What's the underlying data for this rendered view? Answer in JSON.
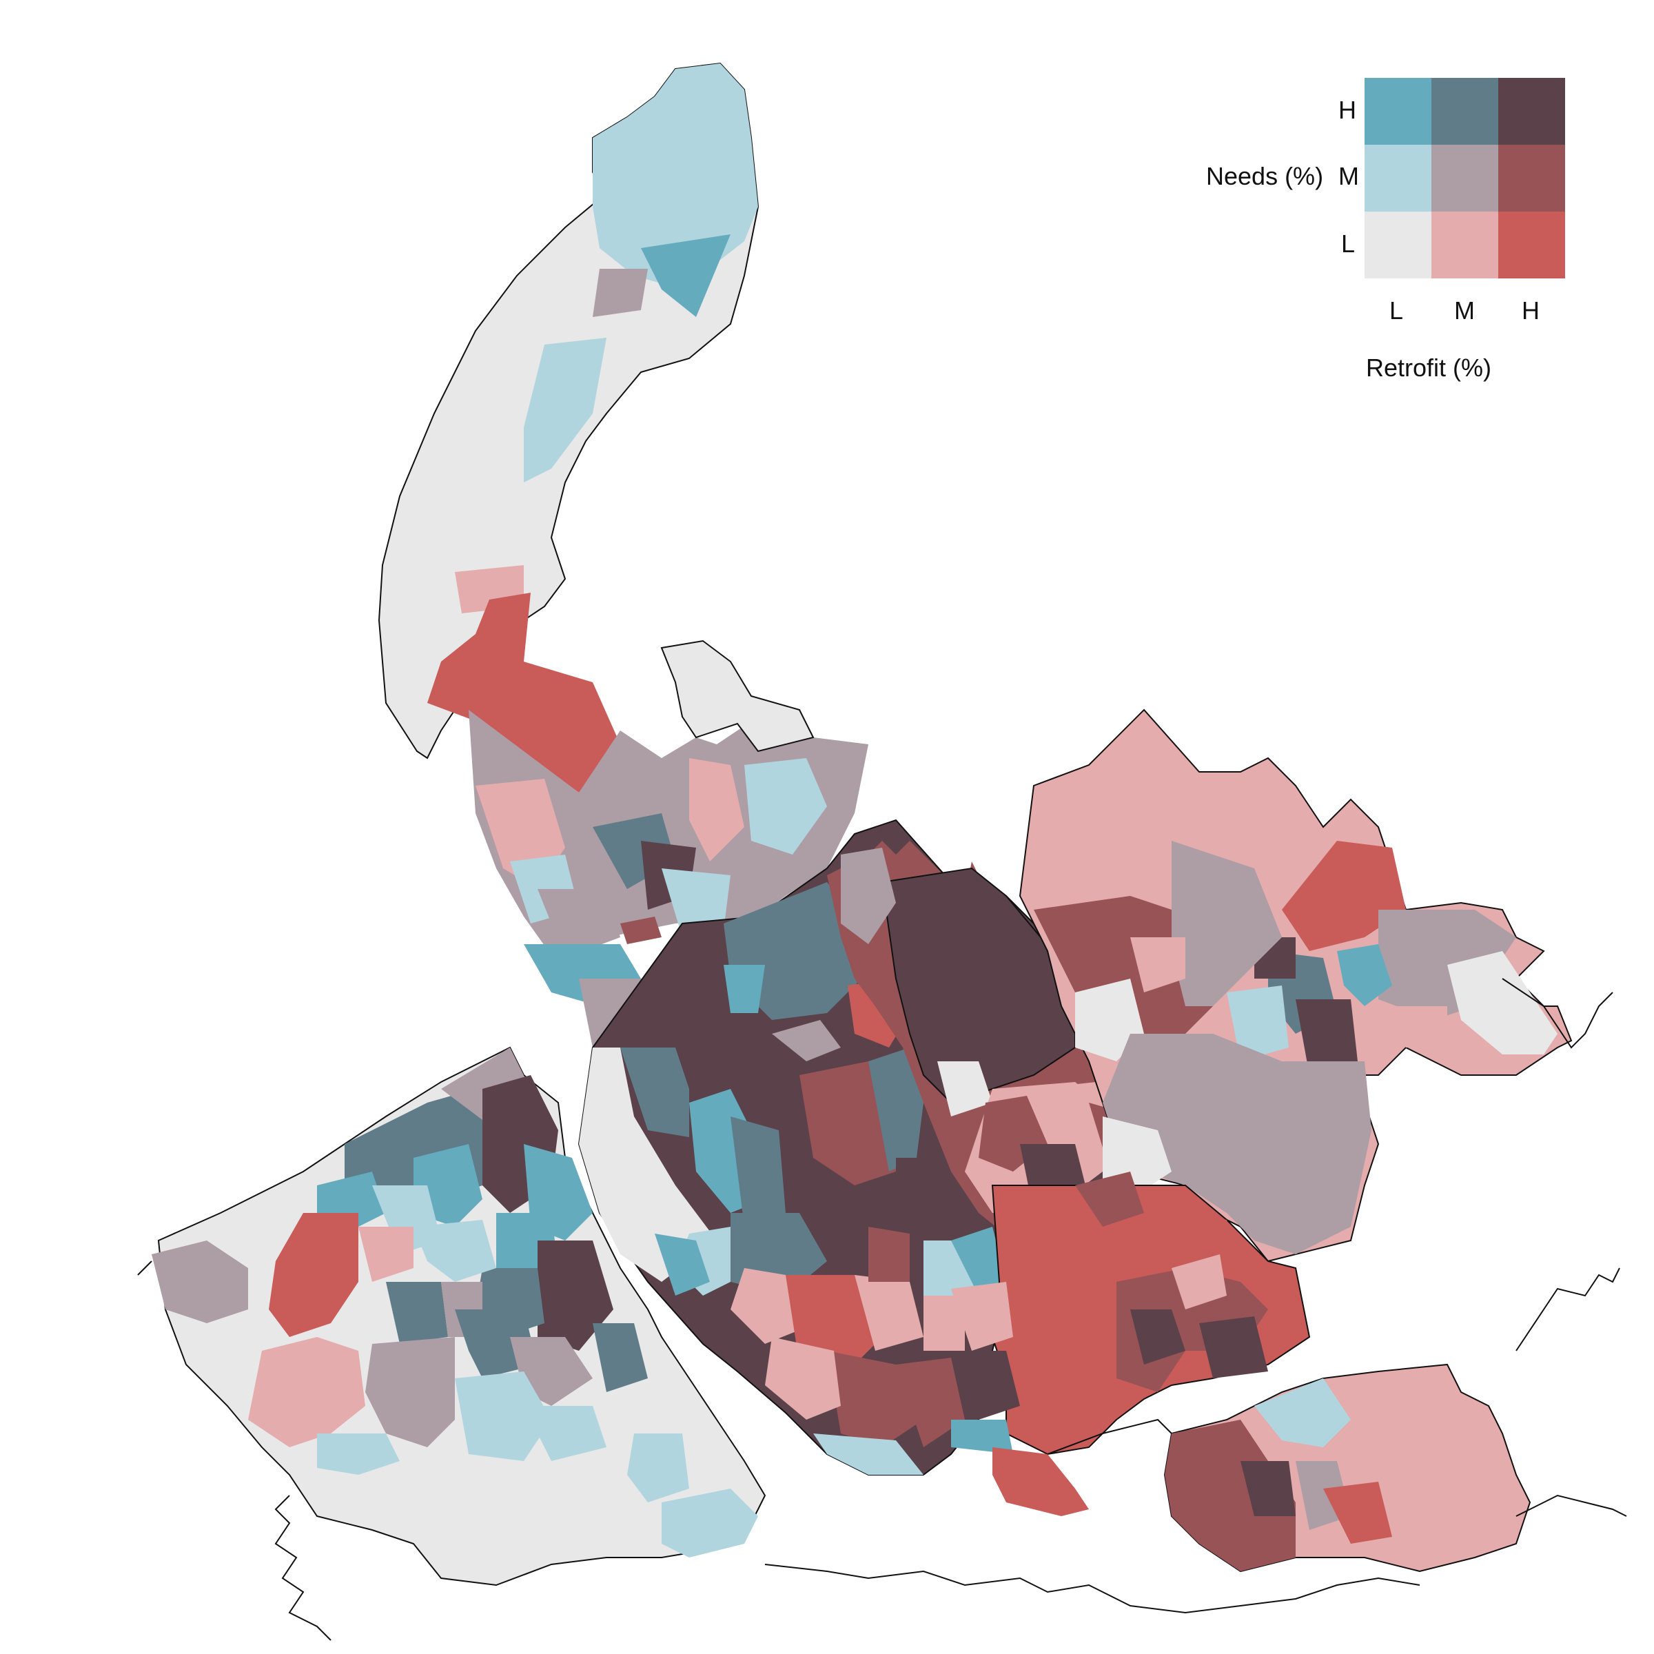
{
  "legend": {
    "y_title": "Needs (%)",
    "x_title": "Retrofit (%)",
    "y_levels": [
      "H",
      "M",
      "L"
    ],
    "x_levels": [
      "L",
      "M",
      "H"
    ],
    "colors": {
      "H-L": "#64abbe",
      "H-M": "#607c89",
      "H-H": "#5a414a",
      "M-L": "#b0d5de",
      "M-M": "#ad9da4",
      "M-H": "#985356",
      "L-L": "#e8e8e8",
      "L-M": "#e4acad",
      "L-H": "#c95b59"
    }
  }
}
